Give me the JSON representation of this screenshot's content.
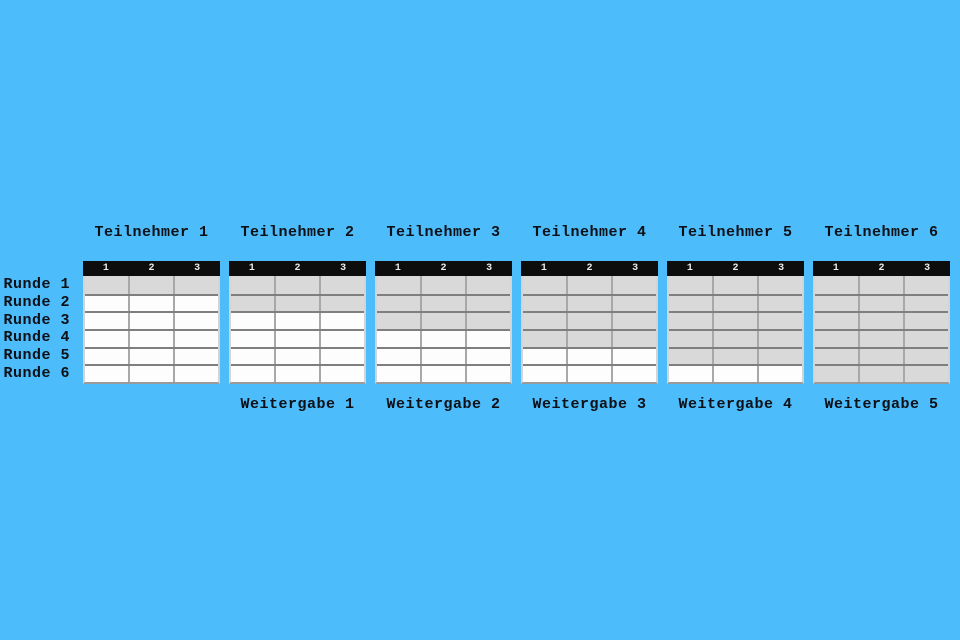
{
  "colors": {
    "background": "#4cbcfb",
    "header_bg": "#0d0d0d",
    "header_text": "#ececec",
    "shaded_row": "#d9d9d9",
    "white_row": "#fdfdfd",
    "row_divider": "#7f7f7f",
    "col_divider": "#a8a8a8",
    "outer_border": "#d4d4d4",
    "bottom_border": "#9a9a9a",
    "label_text": "#0d1016"
  },
  "columns": [
    "1",
    "2",
    "3"
  ],
  "participants": [
    {
      "title": "Teilnehmer 1",
      "shaded_rows": 1
    },
    {
      "title": "Teilnehmer 2",
      "shaded_rows": 2
    },
    {
      "title": "Teilnehmer 3",
      "shaded_rows": 3
    },
    {
      "title": "Teilnehmer 4",
      "shaded_rows": 4
    },
    {
      "title": "Teilnehmer 5",
      "shaded_rows": 5
    },
    {
      "title": "Teilnehmer 6",
      "shaded_rows": 6
    }
  ],
  "rounds": [
    "Runde 1",
    "Runde 2",
    "Runde 3",
    "Runde 4",
    "Runde 5",
    "Runde 6"
  ],
  "passes": [
    "Weitergabe 1",
    "Weitergabe 2",
    "Weitergabe 3",
    "Weitergabe 4",
    "Weitergabe 5"
  ]
}
